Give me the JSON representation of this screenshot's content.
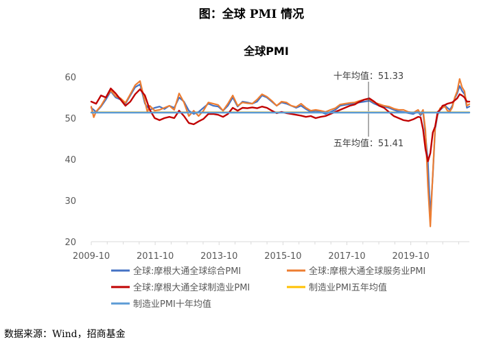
{
  "figure_title": "图：全球 PMI 情况",
  "source_note": "数据来源：Wind，招商基金",
  "colors": {
    "composite": "#4472C4",
    "services": "#ED7D31",
    "manufacturing": "#C00000",
    "avg5": "#FFC000",
    "avg10": "#5B9BD5",
    "axis": "#D9D9D9",
    "text": "#595959"
  },
  "chart_data": {
    "type": "line",
    "title": "全球PMI",
    "ylim": [
      20,
      60
    ],
    "yticks": [
      "20",
      "30",
      "40",
      "50",
      "60"
    ],
    "xticks": [
      "2009-10",
      "2011-10",
      "2013-10",
      "2015-10",
      "2017-10",
      "2019-10"
    ],
    "x_start": "2009-10",
    "x_end": "2021-08",
    "annotations": [
      {
        "text": "十年均值：51.33",
        "series": "avg10"
      },
      {
        "text": "五年均值：51.41",
        "series": "avg5"
      }
    ],
    "legend": [
      {
        "key": "composite",
        "label": "全球:摩根大通全球综合PMI"
      },
      {
        "key": "services",
        "label": "全球:摩根大通全球服务业PMI"
      },
      {
        "key": "manufacturing",
        "label": "全球:摩根大通全球制造业PMI"
      },
      {
        "key": "avg5",
        "label": "制造业PMI五年均值"
      },
      {
        "key": "avg10",
        "label": "制造业PMI十年均值"
      }
    ],
    "series": [
      {
        "key": "composite",
        "name": "全球:摩根大通全球综合PMI",
        "points": [
          [
            0,
            52.5
          ],
          [
            2,
            51.5
          ],
          [
            4,
            52.8
          ],
          [
            6,
            54.5
          ],
          [
            8,
            56.5
          ],
          [
            10,
            55
          ],
          [
            12,
            54.5
          ],
          [
            14,
            53.5
          ],
          [
            16,
            55.5
          ],
          [
            18,
            57.5
          ],
          [
            20,
            58.2
          ],
          [
            22,
            53.5
          ],
          [
            24,
            52
          ],
          [
            26,
            52.5
          ],
          [
            28,
            52.8
          ],
          [
            30,
            52.2
          ],
          [
            32,
            53
          ],
          [
            34,
            52.5
          ],
          [
            36,
            55
          ],
          [
            38,
            54
          ],
          [
            40,
            51.8
          ],
          [
            42,
            51
          ],
          [
            44,
            51.5
          ],
          [
            46,
            52.5
          ],
          [
            48,
            53.5
          ],
          [
            50,
            53
          ],
          [
            52,
            52.8
          ],
          [
            54,
            51.8
          ],
          [
            56,
            53
          ],
          [
            58,
            55
          ],
          [
            60,
            52.8
          ],
          [
            62,
            54
          ],
          [
            64,
            53.8
          ],
          [
            66,
            53.5
          ],
          [
            68,
            54
          ],
          [
            70,
            55.5
          ],
          [
            72,
            55
          ],
          [
            74,
            54
          ],
          [
            76,
            53
          ],
          [
            78,
            53.8
          ],
          [
            80,
            53.5
          ],
          [
            82,
            53
          ],
          [
            84,
            52.5
          ],
          [
            86,
            53
          ],
          [
            88,
            52.2
          ],
          [
            90,
            51.5
          ],
          [
            92,
            51.8
          ],
          [
            94,
            51.5
          ],
          [
            96,
            51
          ],
          [
            98,
            51.5
          ],
          [
            100,
            52
          ],
          [
            102,
            53
          ],
          [
            104,
            53.2
          ],
          [
            106,
            53.4
          ],
          [
            108,
            53.6
          ],
          [
            110,
            53.8
          ],
          [
            112,
            54
          ],
          [
            114,
            54.2
          ],
          [
            116,
            53.5
          ],
          [
            118,
            53
          ],
          [
            120,
            52.8
          ],
          [
            122,
            52.5
          ],
          [
            124,
            52
          ],
          [
            126,
            51.6
          ],
          [
            128,
            51.5
          ],
          [
            130,
            51.2
          ],
          [
            132,
            51
          ],
          [
            133,
            51.3
          ],
          [
            134,
            51.5
          ],
          [
            135,
            50.7
          ],
          [
            136,
            51.5
          ],
          [
            137,
            46
          ],
          [
            138,
            39.3
          ],
          [
            139,
            26.2
          ],
          [
            140,
            36
          ],
          [
            141,
            47.5
          ],
          [
            142,
            50.8
          ],
          [
            143,
            52
          ],
          [
            144,
            52.5
          ],
          [
            145,
            53
          ],
          [
            146,
            52.5
          ],
          [
            147,
            52
          ],
          [
            148,
            53
          ],
          [
            149,
            54.8
          ],
          [
            150,
            56
          ],
          [
            151,
            57.8
          ],
          [
            152,
            56.6
          ],
          [
            153,
            55.8
          ],
          [
            154,
            52.5
          ],
          [
            155,
            52.8
          ]
        ]
      },
      {
        "key": "services",
        "name": "全球:摩根大通全球服务业PMI",
        "points": [
          [
            0,
            52.8
          ],
          [
            1,
            50.2
          ],
          [
            2,
            51.6
          ],
          [
            4,
            53
          ],
          [
            6,
            55
          ],
          [
            8,
            56.7
          ],
          [
            10,
            55.3
          ],
          [
            12,
            54.8
          ],
          [
            14,
            53.7
          ],
          [
            16,
            55.8
          ],
          [
            18,
            58
          ],
          [
            20,
            59
          ],
          [
            22,
            54
          ],
          [
            23,
            51.5
          ],
          [
            24,
            53
          ],
          [
            26,
            51.8
          ],
          [
            28,
            52
          ],
          [
            30,
            52.5
          ],
          [
            32,
            53
          ],
          [
            34,
            52
          ],
          [
            36,
            56
          ],
          [
            38,
            53.8
          ],
          [
            40,
            50.5
          ],
          [
            42,
            51.8
          ],
          [
            44,
            50.5
          ],
          [
            46,
            51.8
          ],
          [
            48,
            53.8
          ],
          [
            50,
            53.5
          ],
          [
            52,
            53.2
          ],
          [
            54,
            51.8
          ],
          [
            56,
            53.5
          ],
          [
            58,
            55.5
          ],
          [
            60,
            53
          ],
          [
            62,
            53.8
          ],
          [
            64,
            53.6
          ],
          [
            66,
            53.5
          ],
          [
            68,
            54.5
          ],
          [
            70,
            55.8
          ],
          [
            72,
            55.2
          ],
          [
            74,
            54.2
          ],
          [
            76,
            53
          ],
          [
            78,
            54
          ],
          [
            80,
            53.8
          ],
          [
            82,
            53
          ],
          [
            84,
            52.7
          ],
          [
            86,
            53.5
          ],
          [
            88,
            52.5
          ],
          [
            90,
            51.8
          ],
          [
            92,
            52
          ],
          [
            94,
            51.8
          ],
          [
            96,
            51.5
          ],
          [
            98,
            52
          ],
          [
            100,
            52.4
          ],
          [
            102,
            53.3
          ],
          [
            104,
            53.5
          ],
          [
            106,
            53.7
          ],
          [
            108,
            53.8
          ],
          [
            110,
            54.2
          ],
          [
            112,
            54.5
          ],
          [
            114,
            54.6
          ],
          [
            116,
            53.8
          ],
          [
            118,
            53.4
          ],
          [
            120,
            53
          ],
          [
            122,
            52.8
          ],
          [
            124,
            52.3
          ],
          [
            126,
            52
          ],
          [
            128,
            52
          ],
          [
            130,
            51.5
          ],
          [
            132,
            51.3
          ],
          [
            134,
            52
          ],
          [
            135,
            51
          ],
          [
            136,
            52
          ],
          [
            137,
            47
          ],
          [
            138,
            33.5
          ],
          [
            139,
            23.7
          ],
          [
            140,
            36.5
          ],
          [
            141,
            48
          ],
          [
            142,
            51
          ],
          [
            143,
            52.4
          ],
          [
            144,
            52.6
          ],
          [
            145,
            52.8
          ],
          [
            146,
            51.8
          ],
          [
            147,
            51.6
          ],
          [
            148,
            52.6
          ],
          [
            149,
            55
          ],
          [
            150,
            56.5
          ],
          [
            151,
            59.5
          ],
          [
            152,
            57.5
          ],
          [
            153,
            56.5
          ],
          [
            154,
            53
          ],
          [
            155,
            53.4
          ]
        ]
      },
      {
        "key": "manufacturing",
        "name": "全球:摩根大通全球制造业PMI",
        "points": [
          [
            0,
            54
          ],
          [
            2,
            53.5
          ],
          [
            4,
            55.5
          ],
          [
            6,
            55
          ],
          [
            8,
            57.2
          ],
          [
            10,
            56
          ],
          [
            12,
            54.5
          ],
          [
            14,
            53
          ],
          [
            16,
            54
          ],
          [
            18,
            55.8
          ],
          [
            20,
            57
          ],
          [
            22,
            55.5
          ],
          [
            24,
            52
          ],
          [
            26,
            50
          ],
          [
            28,
            49.5
          ],
          [
            30,
            50
          ],
          [
            32,
            50.3
          ],
          [
            34,
            50
          ],
          [
            36,
            51.8
          ],
          [
            38,
            50.5
          ],
          [
            40,
            48.8
          ],
          [
            42,
            48.5
          ],
          [
            44,
            49.2
          ],
          [
            46,
            49.8
          ],
          [
            48,
            51
          ],
          [
            50,
            51
          ],
          [
            52,
            50.8
          ],
          [
            54,
            50.3
          ],
          [
            56,
            51
          ],
          [
            58,
            52.5
          ],
          [
            60,
            51.8
          ],
          [
            62,
            52.5
          ],
          [
            64,
            52.4
          ],
          [
            66,
            52.6
          ],
          [
            68,
            52.4
          ],
          [
            70,
            52.8
          ],
          [
            72,
            52.5
          ],
          [
            74,
            51.8
          ],
          [
            76,
            51.2
          ],
          [
            78,
            51.5
          ],
          [
            80,
            51.2
          ],
          [
            82,
            51
          ],
          [
            84,
            50.8
          ],
          [
            86,
            50.6
          ],
          [
            88,
            50.3
          ],
          [
            90,
            50.5
          ],
          [
            92,
            50
          ],
          [
            94,
            50.3
          ],
          [
            96,
            50.5
          ],
          [
            98,
            51
          ],
          [
            100,
            51.5
          ],
          [
            102,
            52
          ],
          [
            104,
            52.5
          ],
          [
            106,
            53
          ],
          [
            108,
            53.3
          ],
          [
            110,
            54
          ],
          [
            112,
            54.5
          ],
          [
            114,
            54.8
          ],
          [
            116,
            54
          ],
          [
            118,
            53
          ],
          [
            120,
            52.5
          ],
          [
            122,
            51.5
          ],
          [
            124,
            50.5
          ],
          [
            126,
            50
          ],
          [
            128,
            49.5
          ],
          [
            130,
            49.3
          ],
          [
            132,
            49.7
          ],
          [
            134,
            50.3
          ],
          [
            135,
            50.2
          ],
          [
            136,
            47.3
          ],
          [
            137,
            42.5
          ],
          [
            138,
            39.5
          ],
          [
            139,
            41.5
          ],
          [
            140,
            46.5
          ],
          [
            141,
            48
          ],
          [
            142,
            51.5
          ],
          [
            143,
            52
          ],
          [
            144,
            53
          ],
          [
            145,
            53.2
          ],
          [
            146,
            53.5
          ],
          [
            148,
            53.8
          ],
          [
            150,
            54.8
          ],
          [
            151,
            55.8
          ],
          [
            152,
            55.5
          ],
          [
            153,
            55
          ],
          [
            154,
            54
          ],
          [
            155,
            54
          ]
        ]
      },
      {
        "key": "avg5",
        "name": "制造业PMI五年均值",
        "points": [
          [
            0,
            51.41
          ],
          [
            155,
            51.41
          ]
        ]
      },
      {
        "key": "avg10",
        "name": "制造业PMI十年均值",
        "points": [
          [
            0,
            51.33
          ],
          [
            155,
            51.33
          ]
        ]
      }
    ]
  }
}
